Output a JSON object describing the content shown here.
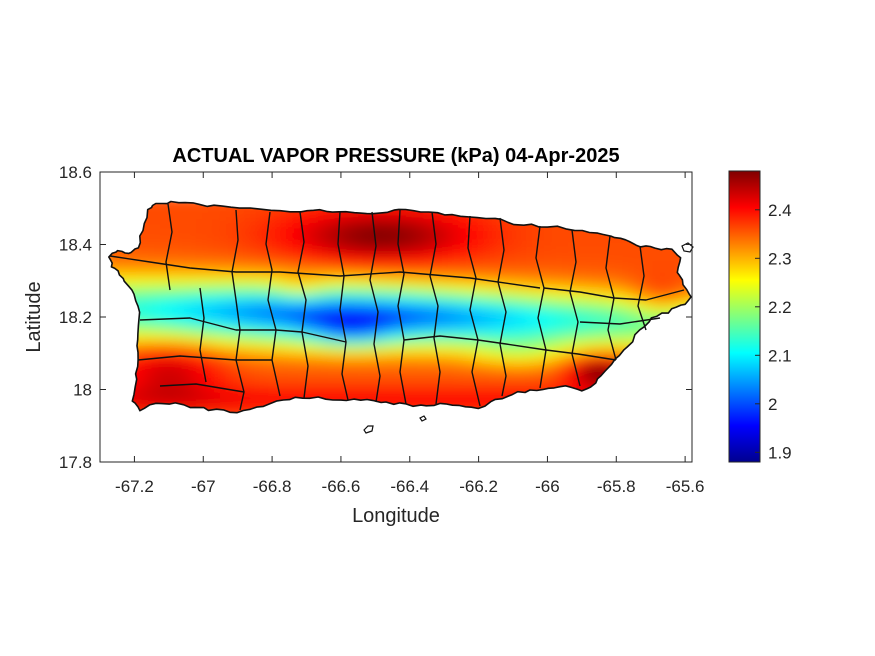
{
  "chart_data": {
    "type": "heatmap",
    "title": "ACTUAL VAPOR PRESSURE (kPa) 04-Apr-2025",
    "xlabel": "Longitude",
    "ylabel": "Latitude",
    "xlim": [
      -67.3,
      -65.58
    ],
    "ylim": [
      17.8,
      18.6
    ],
    "x_ticks": [
      -67.2,
      -67,
      -66.8,
      -66.6,
      -66.4,
      -66.2,
      -66,
      -65.8,
      -65.6
    ],
    "x_tick_labels": [
      "-67.2",
      "-67",
      "-66.8",
      "-66.6",
      "-66.4",
      "-66.2",
      "-66",
      "-65.8",
      "-65.6"
    ],
    "y_ticks": [
      17.8,
      18,
      18.2,
      18.4,
      18.6
    ],
    "y_tick_labels": [
      "17.8",
      "18",
      "18.2",
      "18.4",
      "18.6"
    ],
    "colormap": "jet",
    "color_range": [
      1.88,
      2.48
    ],
    "colorbar_ticks": [
      1.9,
      2,
      2.1,
      2.2,
      2.3,
      2.4
    ],
    "colorbar_tick_labels": [
      "1.9",
      "2",
      "2.1",
      "2.2",
      "2.3",
      "2.4"
    ],
    "box": true,
    "grid": false
  }
}
